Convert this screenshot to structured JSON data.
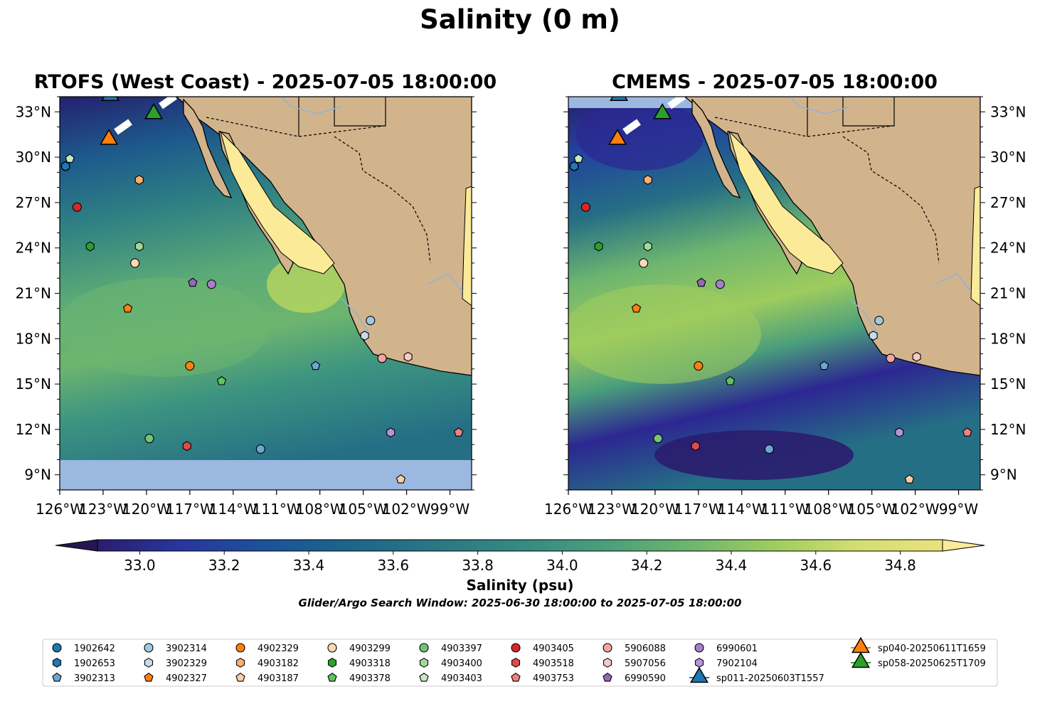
{
  "figure": {
    "title": "Salinity (0 m)",
    "search_window": "Glider/Argo Search Window: 2025-06-30 18:00:00 to 2025-07-05 18:00:00"
  },
  "panels": [
    {
      "title": "RTOFS (West Coast) - 2025-07-05 18:00:00",
      "model": "RTOFS",
      "south_mask": true
    },
    {
      "title": "CMEMS - 2025-07-05 18:00:00",
      "model": "CMEMS",
      "south_mask": false
    }
  ],
  "map": {
    "lon_range": [
      -126,
      -97.5
    ],
    "lat_range": [
      8,
      34
    ],
    "lon_ticks": [
      "126°W",
      "123°W",
      "120°W",
      "117°W",
      "114°W",
      "111°W",
      "108°W",
      "105°W",
      "102°W",
      "99°W"
    ],
    "lat_ticks": [
      "9°N",
      "12°N",
      "15°N",
      "18°N",
      "21°N",
      "24°N",
      "27°N",
      "30°N",
      "33°N"
    ],
    "colors": {
      "land": "#d2b48c",
      "missing_ocean": "#9ab8e0",
      "river": "#8fb3d9"
    }
  },
  "colorbar": {
    "label": "Salinity (psu)",
    "vmin": 32.9,
    "vmax": 34.9,
    "ticks": [
      "33.0",
      "33.2",
      "33.4",
      "33.6",
      "33.8",
      "34.0",
      "34.2",
      "34.4",
      "34.6",
      "34.8"
    ],
    "colors": [
      "#2a1d6e",
      "#2c2792",
      "#28369f",
      "#21449e",
      "#1b539a",
      "#175d8f",
      "#1d6689",
      "#256f85",
      "#2a7784",
      "#2f8083",
      "#358a82",
      "#3d9480",
      "#4a9e7c",
      "#5aa977",
      "#6db56f",
      "#85c266",
      "#9ecc5e",
      "#b8d65e",
      "#d3df70",
      "#eae27d"
    ],
    "under_color": "#261750",
    "over_color": "#fbeb99"
  },
  "floats": [
    {
      "id": "1902642",
      "color": "#1f77b4",
      "marker": "circle",
      "lon": -125.6,
      "lat": 29.4
    },
    {
      "id": "1902653",
      "color": "#1f77b4",
      "marker": "hexagon",
      "lon": -125.6,
      "lat": 29.4
    },
    {
      "id": "3902313",
      "color": "#6aa6d6",
      "marker": "pentagon",
      "lon": -108.3,
      "lat": 16.2
    },
    {
      "id": "3902314",
      "color": "#9ecae1",
      "marker": "circle",
      "lon": -104.5,
      "lat": 19.2
    },
    {
      "id": "3902329",
      "color": "#c6dbef",
      "marker": "hexagon",
      "lon": -104.9,
      "lat": 18.2
    },
    {
      "id": "4902327",
      "color": "#ff7f0e",
      "marker": "pentagon",
      "lon": -121.3,
      "lat": 20.0
    },
    {
      "id": "4902329",
      "color": "#ff7f0e",
      "marker": "circle",
      "lon": -117.0,
      "lat": 16.2
    },
    {
      "id": "4903182",
      "color": "#fdae6b",
      "marker": "hexagon",
      "lon": -120.5,
      "lat": 28.5
    },
    {
      "id": "4903187",
      "color": "#fdd0a2",
      "marker": "pentagon",
      "lon": -102.4,
      "lat": 8.7
    },
    {
      "id": "4903299",
      "color": "#fdd9b5",
      "marker": "circle",
      "lon": -120.8,
      "lat": 23.0
    },
    {
      "id": "4903318",
      "color": "#2ca02c",
      "marker": "hexagon",
      "lon": -123.9,
      "lat": 24.1
    },
    {
      "id": "4903378",
      "color": "#5fc35f",
      "marker": "pentagon",
      "lon": -114.8,
      "lat": 15.2
    },
    {
      "id": "4903397",
      "color": "#74c476",
      "marker": "circle",
      "lon": -119.8,
      "lat": 11.4
    },
    {
      "id": "4903400",
      "color": "#a1d99b",
      "marker": "hexagon",
      "lon": -120.5,
      "lat": 24.1
    },
    {
      "id": "4903403",
      "color": "#c7e9c0",
      "marker": "pentagon",
      "lon": -125.3,
      "lat": 29.9
    },
    {
      "id": "4903405",
      "color": "#d62728",
      "marker": "circle",
      "lon": -124.8,
      "lat": 26.7
    },
    {
      "id": "4903518",
      "color": "#e04a4a",
      "marker": "hexagon",
      "lon": -117.2,
      "lat": 10.9
    },
    {
      "id": "4903753",
      "color": "#f08080",
      "marker": "pentagon",
      "lon": -98.4,
      "lat": 11.8
    },
    {
      "id": "5906088",
      "color": "#f4a3a3",
      "marker": "circle",
      "lon": -103.7,
      "lat": 16.7
    },
    {
      "id": "5907056",
      "color": "#fbc7c7",
      "marker": "hexagon",
      "lon": -101.9,
      "lat": 16.8
    },
    {
      "id": "6990590",
      "color": "#9467bd",
      "marker": "pentagon",
      "lon": -116.8,
      "lat": 21.7
    },
    {
      "id": "6990601",
      "color": "#a57fcc",
      "marker": "circle",
      "lon": -115.5,
      "lat": 21.6
    },
    {
      "id": "7902104",
      "color": "#b694dc",
      "marker": "hexagon",
      "lon": -103.1,
      "lat": 11.8
    },
    {
      "id": "3902313b",
      "color": "#6aa6d6",
      "marker": "circle",
      "lon": -112.1,
      "lat": 10.7
    }
  ],
  "gliders": [
    {
      "id": "sp011-20250603T1557",
      "color": "#1f77b4",
      "lon": -122.5,
      "lat": 34.2
    },
    {
      "id": "sp040-20250611T1659",
      "color": "#ff7f0e",
      "lon": -122.6,
      "lat": 31.3
    },
    {
      "id": "sp058-20250625T1709",
      "color": "#2ca02c",
      "lon": -119.5,
      "lat": 33.0
    }
  ],
  "legend": {
    "columns": [
      [
        {
          "label": "1902642",
          "color": "#1f77b4",
          "marker": "circle"
        },
        {
          "label": "1902653",
          "color": "#1f77b4",
          "marker": "hexagon"
        },
        {
          "label": "3902313",
          "color": "#6aa6d6",
          "marker": "pentagon"
        }
      ],
      [
        {
          "label": "3902314",
          "color": "#9ecae1",
          "marker": "circle"
        },
        {
          "label": "3902329",
          "color": "#c6dbef",
          "marker": "hexagon"
        },
        {
          "label": "4902327",
          "color": "#ff7f0e",
          "marker": "pentagon"
        }
      ],
      [
        {
          "label": "4902329",
          "color": "#ff7f0e",
          "marker": "circle"
        },
        {
          "label": "4903182",
          "color": "#fdae6b",
          "marker": "hexagon"
        },
        {
          "label": "4903187",
          "color": "#fdd0a2",
          "marker": "pentagon"
        }
      ],
      [
        {
          "label": "4903299",
          "color": "#fdd9b5",
          "marker": "circle"
        },
        {
          "label": "4903318",
          "color": "#2ca02c",
          "marker": "hexagon"
        },
        {
          "label": "4903378",
          "color": "#5fc35f",
          "marker": "pentagon"
        }
      ],
      [
        {
          "label": "4903397",
          "color": "#74c476",
          "marker": "circle"
        },
        {
          "label": "4903400",
          "color": "#a1d99b",
          "marker": "hexagon"
        },
        {
          "label": "4903403",
          "color": "#c7e9c0",
          "marker": "pentagon"
        }
      ],
      [
        {
          "label": "4903405",
          "color": "#d62728",
          "marker": "circle"
        },
        {
          "label": "4903518",
          "color": "#e04a4a",
          "marker": "hexagon"
        },
        {
          "label": "4903753",
          "color": "#f08080",
          "marker": "pentagon"
        }
      ],
      [
        {
          "label": "5906088",
          "color": "#f4a3a3",
          "marker": "circle"
        },
        {
          "label": "5907056",
          "color": "#fbc7c7",
          "marker": "hexagon"
        },
        {
          "label": "6990590",
          "color": "#9467bd",
          "marker": "pentagon"
        }
      ],
      [
        {
          "label": "6990601",
          "color": "#a57fcc",
          "marker": "circle"
        },
        {
          "label": "7902104",
          "color": "#b694dc",
          "marker": "hexagon"
        },
        {
          "label": "sp011-20250603T1557",
          "color": "#1f77b4",
          "marker": "triangle"
        }
      ],
      [
        {
          "label": "sp040-20250611T1659",
          "color": "#ff7f0e",
          "marker": "triangle"
        },
        {
          "label": "sp058-20250625T1709",
          "color": "#2ca02c",
          "marker": "triangle"
        }
      ]
    ]
  }
}
